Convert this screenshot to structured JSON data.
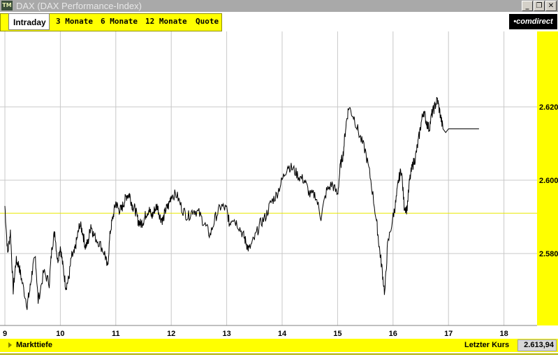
{
  "window": {
    "icon_text": "TM",
    "title": "DAX (DAX Performance-Index)",
    "minimize": "_",
    "restore": "❐",
    "close": "✕"
  },
  "tabs": [
    "Intraday",
    "3 Monate",
    "6 Monate",
    "12 Monate",
    "Quote"
  ],
  "brand": "•comdirect",
  "footer": {
    "left_label": "Markttiefe",
    "right_label": "Letzter Kurs",
    "last_price": "2.613,94"
  },
  "colors": {
    "accent": "#ffff00",
    "line": "#000000",
    "grid": "#c8c8c8",
    "reference": "#e8e800"
  },
  "chart_data": {
    "type": "line",
    "x_ticks": [
      "9",
      "10",
      "11",
      "12",
      "13",
      "14",
      "15",
      "16",
      "17",
      "18"
    ],
    "y_ticks": [
      "2.580",
      "2.600",
      "2.620"
    ],
    "y_tick_values": [
      2580,
      2600,
      2620
    ],
    "ylim": [
      2563,
      2640
    ],
    "xlim": [
      9,
      18.5
    ],
    "grid": true,
    "reference_line": 2591,
    "series": [
      {
        "x": [
          9.0,
          9.05,
          9.1,
          9.15,
          9.2,
          9.25,
          9.3,
          9.4,
          9.45,
          9.5,
          9.55,
          9.6,
          9.7,
          9.8,
          9.85,
          9.9,
          9.95,
          10.0,
          10.05,
          10.1,
          10.15,
          10.2,
          10.25,
          10.3,
          10.35,
          10.4,
          10.45,
          10.5,
          10.55,
          10.6,
          10.7,
          10.8,
          10.85,
          10.9,
          10.95,
          11.0,
          11.05,
          11.1,
          11.15,
          11.2,
          11.25,
          11.3,
          11.35,
          11.4,
          11.45,
          11.5,
          11.55,
          11.6,
          11.65,
          11.7,
          11.75,
          11.8,
          11.85,
          11.9,
          11.95,
          12.0,
          12.1,
          12.2,
          12.3,
          12.4,
          12.5,
          12.6,
          12.7,
          12.8,
          12.9,
          13.0,
          13.05,
          13.1,
          13.2,
          13.3,
          13.35,
          13.4,
          13.5,
          13.6,
          13.7,
          13.8,
          13.9,
          14.0,
          14.1,
          14.2,
          14.3,
          14.4,
          14.5,
          14.6,
          14.7,
          14.8,
          14.9,
          15.0,
          15.05,
          15.1,
          15.15,
          15.2,
          15.3,
          15.4,
          15.5,
          15.6,
          15.7,
          15.75,
          15.8,
          15.85,
          15.9,
          16.0,
          16.05,
          16.1,
          16.15,
          16.2,
          16.25,
          16.3,
          16.35,
          16.4,
          16.45,
          16.5,
          16.55,
          16.6,
          16.65,
          16.7,
          16.75,
          16.8,
          16.85,
          16.9,
          16.95,
          17.0,
          17.05,
          17.1,
          17.15,
          17.2,
          17.25,
          17.3,
          17.35,
          17.4,
          17.45,
          17.5,
          17.55
        ],
        "y": [
          2593,
          2580,
          2586,
          2570,
          2578,
          2577,
          2573,
          2566,
          2570,
          2576,
          2579,
          2567,
          2575,
          2572,
          2582,
          2586,
          2578,
          2582,
          2576,
          2571,
          2573,
          2579,
          2580,
          2584,
          2588,
          2586,
          2582,
          2583,
          2588,
          2585,
          2583,
          2580,
          2576,
          2586,
          2590,
          2594,
          2592,
          2592,
          2594,
          2596,
          2596,
          2593,
          2592,
          2589,
          2588,
          2589,
          2591,
          2592,
          2590,
          2592,
          2593,
          2590,
          2589,
          2592,
          2593,
          2596,
          2596,
          2592,
          2590,
          2592,
          2591,
          2588,
          2585,
          2590,
          2593,
          2592,
          2588,
          2590,
          2588,
          2585,
          2583,
          2581,
          2584,
          2588,
          2590,
          2594,
          2596,
          2600,
          2604,
          2603,
          2601,
          2600,
          2596,
          2596,
          2590,
          2597,
          2599,
          2596,
          2604,
          2607,
          2615,
          2620,
          2617,
          2612,
          2608,
          2600,
          2589,
          2582,
          2576,
          2569,
          2582,
          2590,
          2594,
          2600,
          2603,
          2593,
          2592,
          2600,
          2604,
          2606,
          2610,
          2615,
          2619,
          2616,
          2614,
          2618,
          2620,
          2622,
          2618,
          2614,
          2613,
          2614,
          2614,
          2614,
          2614,
          2614,
          2614,
          2614,
          2614,
          2614,
          2614,
          2614,
          2614
        ]
      }
    ]
  }
}
